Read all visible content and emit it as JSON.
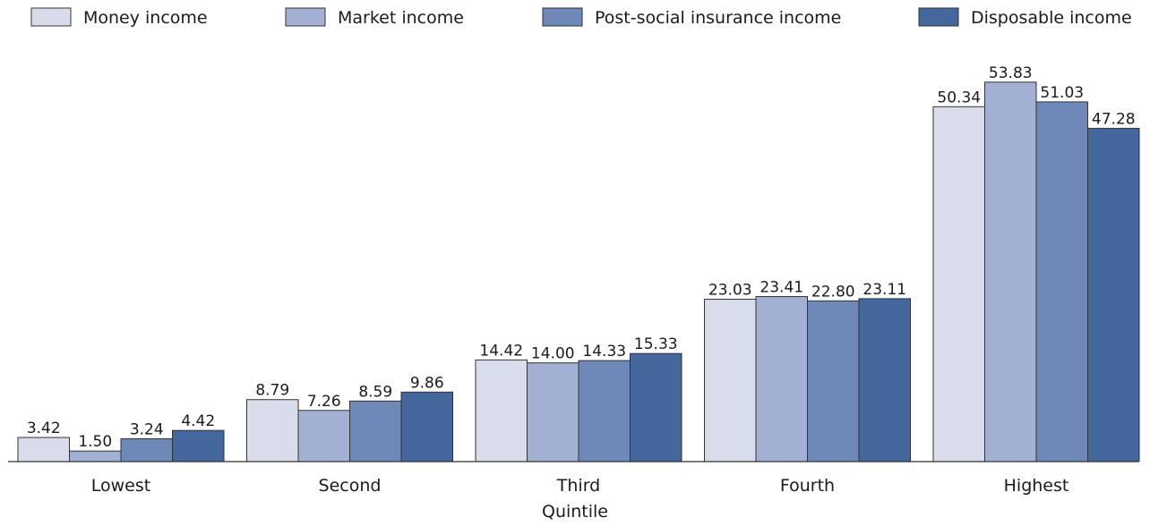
{
  "chart_data": {
    "type": "bar",
    "title": "",
    "xlabel": "Quintile",
    "ylabel": "",
    "categories": [
      "Lowest",
      "Second",
      "Third",
      "Fourth",
      "Highest"
    ],
    "series": [
      {
        "name": "Money income",
        "color": "#d9dcea",
        "values": [
          3.42,
          8.79,
          14.42,
          23.03,
          50.34
        ],
        "labels": [
          "3.42",
          "8.79",
          "14.42",
          "23.03",
          "50.34"
        ]
      },
      {
        "name": "Market income",
        "color": "#a2b1d3",
        "values": [
          1.5,
          7.26,
          14.0,
          23.41,
          53.83
        ],
        "labels": [
          "1.50",
          "7.26",
          "14.00",
          "23.41",
          "53.83"
        ]
      },
      {
        "name": "Post-social insurance income",
        "color": "#6e88b8",
        "values": [
          3.24,
          8.59,
          14.33,
          22.8,
          51.03
        ],
        "labels": [
          "3.24",
          "8.59",
          "14.33",
          "22.80",
          "51.03"
        ]
      },
      {
        "name": "Disposable income",
        "color": "#44679d",
        "values": [
          4.42,
          9.86,
          15.33,
          23.11,
          47.28
        ],
        "labels": [
          "4.42",
          "9.86",
          "15.33",
          "23.11",
          "47.28"
        ]
      }
    ],
    "ylim": [
      0,
      55
    ],
    "grid": false,
    "legend": "top"
  }
}
